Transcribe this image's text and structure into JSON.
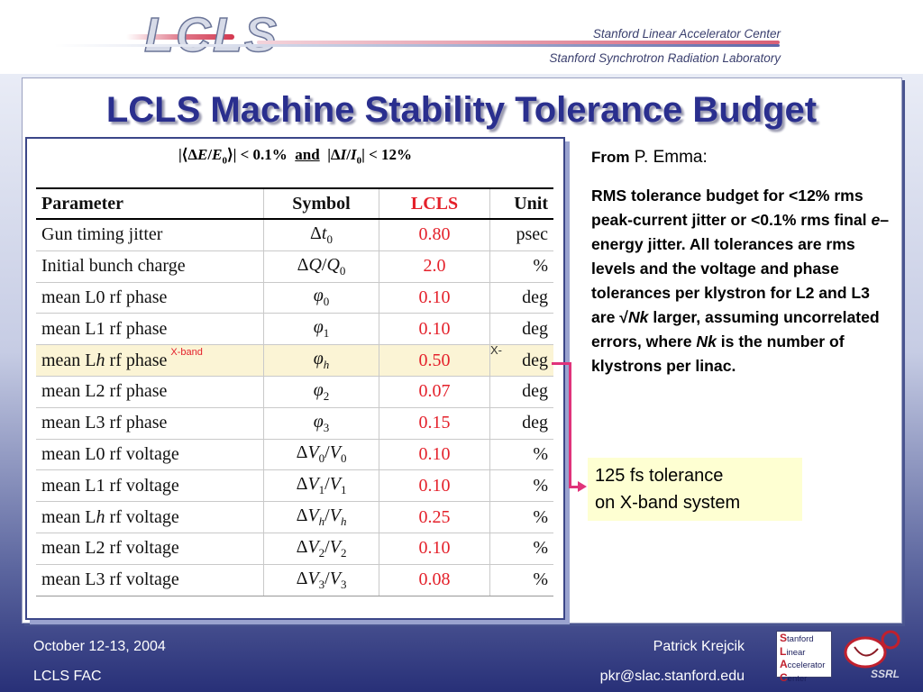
{
  "header": {
    "logo_text": "LCLS",
    "org_line1": "Stanford Linear Accelerator Center",
    "org_line2": "Stanford Synchrotron Radiation Laboratory"
  },
  "title": "LCLS Machine Stability Tolerance Budget",
  "formula": {
    "part1": "|⟨Δ",
    "e": "E",
    "slash1": "/",
    "e0": "E",
    "sub0a": "0",
    "part2": "⟩| < 0.1%",
    "and": "and",
    "part3": "|Δ",
    "i": "I",
    "slash2": "/",
    "i0": "I",
    "sub0b": "0",
    "part4": "| < 12%"
  },
  "table": {
    "headers": {
      "parameter": "Parameter",
      "symbol": "Symbol",
      "lcls": "LCLS",
      "unit": "Unit"
    },
    "rows": [
      {
        "param": "Gun timing jitter",
        "value": "0.80",
        "unit": "psec"
      },
      {
        "param": "Initial bunch charge",
        "value": "2.0",
        "unit": "%"
      },
      {
        "param": "mean L0 rf phase",
        "value": "0.10",
        "unit": "deg"
      },
      {
        "param": "mean L1 rf phase",
        "value": "0.10",
        "unit": "deg"
      },
      {
        "param_pre": "mean L",
        "param_h": "h",
        "param_post": " rf phase",
        "tag": "X-band",
        "value": "0.50",
        "unit": "deg"
      },
      {
        "param": "mean L2 rf phase",
        "value": "0.07",
        "unit": "deg"
      },
      {
        "param": "mean L3 rf phase",
        "value": "0.15",
        "unit": "deg"
      },
      {
        "param": "mean L0 rf voltage",
        "value": "0.10",
        "unit": "%"
      },
      {
        "param": "mean L1 rf voltage",
        "value": "0.10",
        "unit": "%"
      },
      {
        "param_pre": "mean L",
        "param_h": "h",
        "param_post": " rf voltage",
        "value": "0.25",
        "unit": "%"
      },
      {
        "param": "mean L2 rf voltage",
        "value": "0.10",
        "unit": "%"
      },
      {
        "param": "mean L3 rf voltage",
        "value": "0.08",
        "unit": "%"
      }
    ],
    "symbols": {
      "delta": "Δ",
      "t": "t",
      "q": "Q",
      "v": "V",
      "phi": "φ",
      "slash": "/",
      "s0": "0",
      "s1": "1",
      "s2": "2",
      "s3": "3",
      "sh": "h"
    },
    "x_tag": "X-"
  },
  "from": {
    "label": "From",
    "name": "P. Emma:"
  },
  "notes": {
    "p1": "RMS tolerance budget for <12% rms peak-current jitter or <0.1% rms final ",
    "e": "e",
    "p2": "– energy jitter.  All tolerances are rms levels and the voltage and phase tolerances per klystron for L2 and L3 are √",
    "nk1": "Nk",
    "p3": " larger, assuming uncorrelated errors, where ",
    "nk2": "Nk",
    "p4": " is the number of klystrons per linac."
  },
  "callout": {
    "line1": "125 fs tolerance",
    "line2": "on X-band system"
  },
  "colors": {
    "title": "#2a2f8e",
    "lcls_value": "#e4202a",
    "connector": "#e0337a",
    "callout_bg": "#feffd2",
    "highlight_row": "#fbf4d5"
  },
  "footer": {
    "date": "October 12-13, 2004",
    "fac": "LCLS FAC",
    "name": "Patrick Krejcik",
    "email": "pkr@slac.stanford.edu"
  },
  "logos": {
    "slac": {
      "l1": "S",
      "l1r": "tanford",
      "l2": "L",
      "l2r": "inear",
      "l3": "A",
      "l3r": "ccelerator",
      "l4": "C",
      "l4r": "enter"
    },
    "ssrl": "SSRL"
  }
}
